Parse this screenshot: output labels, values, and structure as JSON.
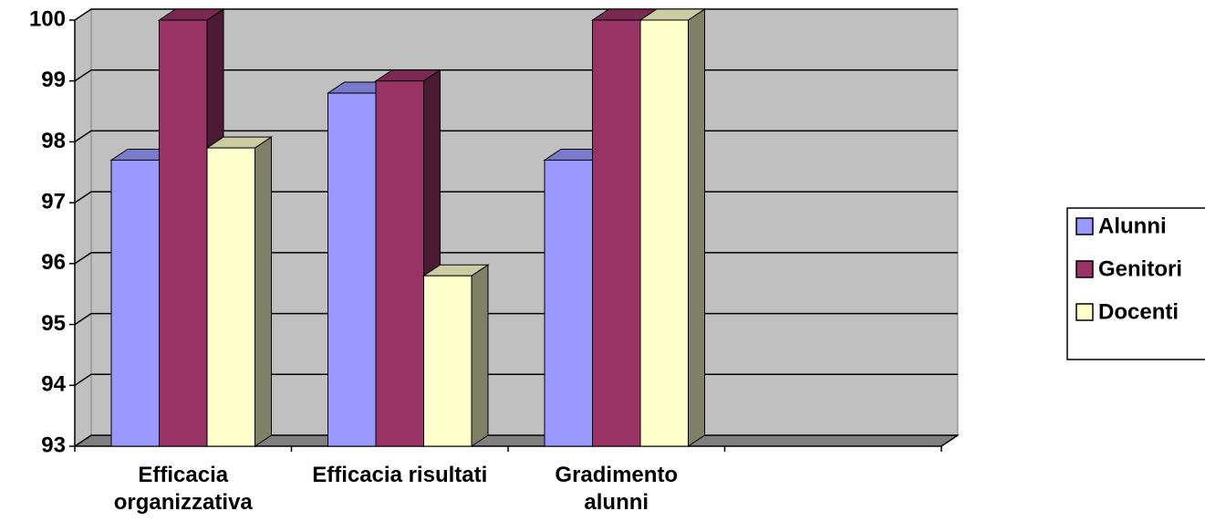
{
  "chart_data": {
    "type": "bar3d",
    "categories": [
      "Efficacia organizzativa",
      "Efficacia risultati",
      "Gradimento alunni",
      null
    ],
    "series": [
      {
        "name": "Alunni",
        "color": "#9999ff",
        "values": [
          97.7,
          98.8,
          97.7,
          null
        ]
      },
      {
        "name": "Genitori",
        "color": "#993366",
        "values": [
          100,
          99,
          100,
          null
        ]
      },
      {
        "name": "Docenti",
        "color": "#ffffcc",
        "values": [
          97.9,
          95.8,
          100,
          null
        ]
      }
    ],
    "ylim": [
      93,
      100
    ],
    "yticks": [
      93,
      94,
      95,
      96,
      97,
      98,
      99,
      100
    ],
    "grid": true,
    "legend": "right"
  }
}
